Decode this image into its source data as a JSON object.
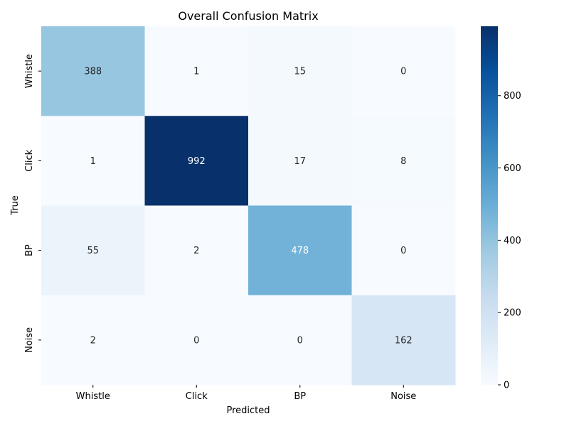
{
  "chart_data": {
    "type": "heatmap",
    "title": "Overall Confusion Matrix",
    "xlabel": "Predicted",
    "ylabel": "True",
    "x_categories": [
      "Whistle",
      "Click",
      "BP",
      "Noise"
    ],
    "y_categories": [
      "Whistle",
      "Click",
      "BP",
      "Noise"
    ],
    "values": [
      [
        388,
        1,
        15,
        0
      ],
      [
        1,
        992,
        17,
        8
      ],
      [
        55,
        2,
        478,
        0
      ],
      [
        2,
        0,
        0,
        162
      ]
    ],
    "colorbar": {
      "colormap": "Blues",
      "range": [
        0,
        992
      ],
      "ticks": [
        0,
        200,
        400,
        600,
        800
      ]
    },
    "grid": false,
    "annotations": true
  }
}
